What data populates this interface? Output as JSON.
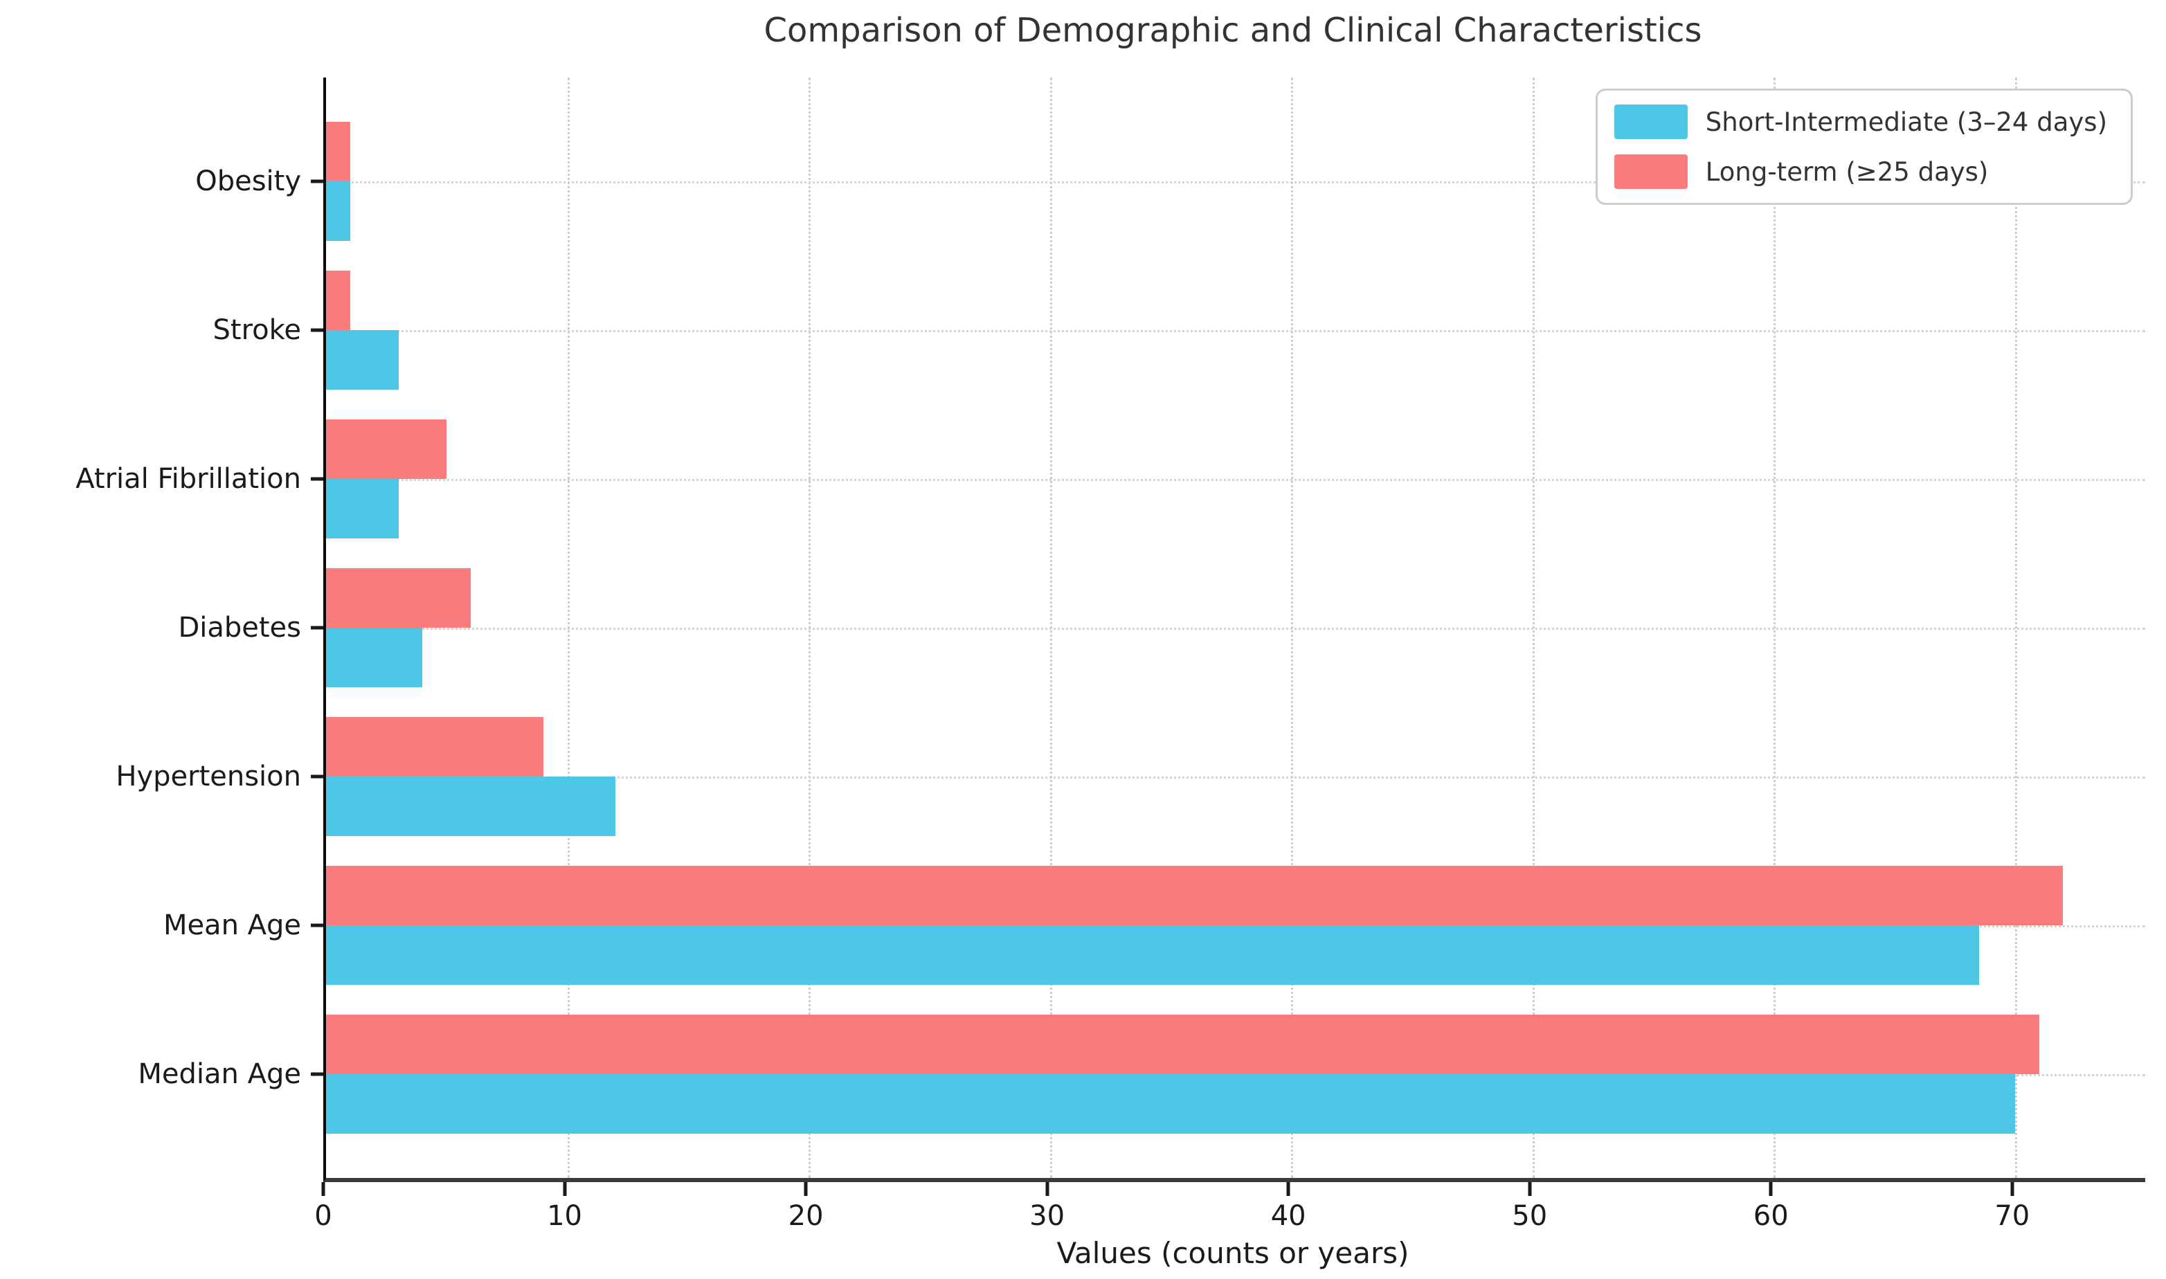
{
  "title": "Comparison of Demographic and Clinical Characteristics",
  "colors": {
    "short_intermediate": "#4DC7E6",
    "long_term": "#FA7C7C",
    "grid": "#cccccc",
    "text": "#1a1a1a",
    "title_text": "#333333"
  },
  "chart_data": {
    "type": "bar",
    "orientation": "horizontal",
    "title": "Comparison of Demographic and Clinical Characteristics",
    "xlabel": "Values (counts or years)",
    "ylabel": "",
    "categories_top_to_bottom": [
      "Obesity",
      "Stroke",
      "Atrial Fibrillation",
      "Diabetes",
      "Hypertension",
      "Mean Age",
      "Median Age"
    ],
    "series": [
      {
        "name": "Short-Intermediate (3–24 days)",
        "color": "#4DC7E6",
        "position_in_group": "bottom",
        "values": [
          1,
          3,
          3,
          4,
          12,
          68.5,
          70
        ]
      },
      {
        "name": "Long-term (≥25 days)",
        "color": "#FA7C7C",
        "position_in_group": "top",
        "values": [
          1,
          1,
          5,
          6,
          9,
          72,
          71
        ]
      }
    ],
    "x_ticks": [
      0,
      10,
      20,
      30,
      40,
      50,
      60,
      70
    ],
    "xlim": [
      0,
      75.4
    ],
    "grid": true,
    "grid_style": "dotted",
    "legend_position": "upper right"
  },
  "legend": {
    "items": [
      {
        "label": "Short-Intermediate (3–24 days)",
        "color": "#4DC7E6"
      },
      {
        "label": "Long-term (≥25 days)",
        "color": "#FA7C7C"
      }
    ]
  }
}
